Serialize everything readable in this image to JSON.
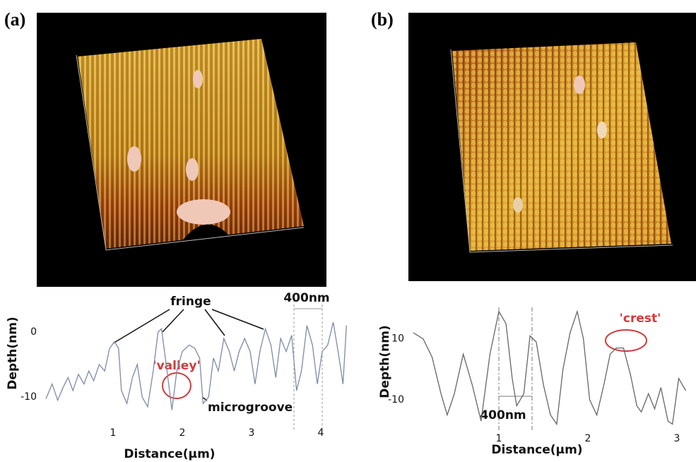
{
  "panels": [
    {
      "label": "(a)"
    },
    {
      "label": "(b)"
    }
  ],
  "chart_data": [
    {
      "type": "line",
      "x_label": "Distance(μm)",
      "y_label": "Depth(nm)",
      "annotations": [
        "fringe",
        "'valley'",
        "microgroove",
        "400nm"
      ],
      "xlim": [
        0,
        4.4
      ],
      "ylim": [
        -13,
        5
      ],
      "xticks": [
        1,
        2,
        3,
        4
      ],
      "yticks": [
        -10,
        0
      ],
      "series": [
        {
          "color": "#7d8aa8",
          "x": [
            0.03,
            0.12,
            0.2,
            0.28,
            0.35,
            0.42,
            0.5,
            0.58,
            0.65,
            0.72,
            0.8,
            0.88,
            0.95,
            1.02,
            1.08,
            1.12,
            1.2,
            1.28,
            1.35,
            1.42,
            1.5,
            1.58,
            1.65,
            1.7,
            1.78,
            1.85,
            1.92,
            2.0,
            2.1,
            2.18,
            2.25,
            2.3,
            2.38,
            2.45,
            2.52,
            2.6,
            2.68,
            2.75,
            2.82,
            2.9,
            2.98,
            3.05,
            3.12,
            3.2,
            3.28,
            3.35,
            3.42,
            3.5,
            3.58,
            3.65,
            3.72,
            3.8,
            3.88,
            3.95,
            4.02,
            4.1,
            4.18,
            4.25,
            4.32,
            4.37
          ],
          "values": [
            -10.3,
            -8,
            -10.5,
            -8.5,
            -7,
            -9,
            -6.5,
            -8,
            -6,
            -7.5,
            -5,
            -6,
            -2.5,
            -1.5,
            -2.5,
            -9,
            -11,
            -7,
            -5,
            -10,
            -11.5,
            -6,
            0,
            0.5,
            -6,
            -12,
            -6,
            -3,
            -2,
            -2.5,
            -4,
            -11,
            -10,
            -4,
            -6,
            -1,
            -3,
            -6,
            -3,
            -1,
            -3,
            -8,
            -3,
            0.5,
            -2,
            -7,
            -1,
            -3,
            -0.5,
            -9,
            -6,
            1,
            -2,
            -8,
            -3,
            -2,
            1.5,
            -3,
            -8,
            1
          ]
        }
      ]
    },
    {
      "type": "line",
      "x_label": "Distance(μm)",
      "y_label": "Depth(nm)",
      "annotations": [
        "'crest'",
        "400nm"
      ],
      "xlim": [
        0,
        3.15
      ],
      "ylim": [
        -20,
        22
      ],
      "xticks": [
        1,
        2,
        3
      ],
      "yticks": [
        -10,
        10
      ],
      "series": [
        {
          "color": "#666666",
          "x": [
            0.04,
            0.15,
            0.25,
            0.35,
            0.42,
            0.5,
            0.6,
            0.7,
            0.8,
            0.9,
            1.0,
            1.08,
            1.15,
            1.2,
            1.28,
            1.35,
            1.42,
            1.5,
            1.58,
            1.65,
            1.72,
            1.8,
            1.88,
            1.95,
            2.02,
            2.1,
            2.18,
            2.25,
            2.32,
            2.4,
            2.48,
            2.55,
            2.6,
            2.68,
            2.75,
            2.82,
            2.9,
            2.95,
            3.02,
            3.1
          ],
          "values": [
            12,
            10,
            4,
            -8,
            -15,
            -8,
            5,
            -5,
            -17,
            5,
            19,
            15,
            -3,
            -12,
            -8,
            11,
            9,
            -5,
            -15,
            -18,
            0,
            12,
            19,
            10,
            -10,
            -15,
            -5,
            5,
            7,
            7,
            -2,
            -12,
            -14,
            -8,
            -13,
            -6,
            -17,
            -18,
            -3,
            -7
          ]
        }
      ]
    }
  ]
}
